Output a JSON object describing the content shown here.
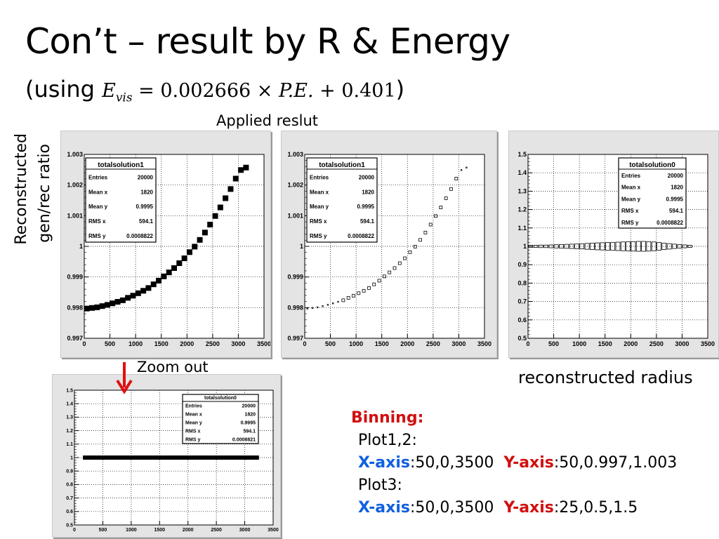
{
  "title": "Con’t – result by R & Energy",
  "subtitle": {
    "open": "(using ",
    "formula_lhs": "E",
    "formula_sub": "vis",
    "formula_rest": " = 0.002666 × ",
    "formula_pe": "P.E.",
    "formula_tail": " + 0.401",
    "close": ")"
  },
  "applied_label": "Applied reslut",
  "ylabel_line1": "Reconstructed",
  "ylabel_line2": "gen/rec ratio",
  "zoom_label": "Zoom out",
  "xaxis_caption": "reconstructed radius",
  "binning": {
    "header": "Binning:",
    "plot12": "Plot1,2:",
    "plot3": "Plot3:",
    "xaxis_word": "X-axis",
    "yaxis_word": "Y-axis",
    "row1_x": ":50,0,3500",
    "row1_y": ":50,0.997,1.003",
    "row2_x": ":50,0,3500",
    "row2_y": ":25,0.5,1.5"
  },
  "colors": {
    "red": "#d01010",
    "blue": "#1060e0",
    "panel_bg": "#e4e4e4"
  },
  "chart_data": [
    {
      "type": "scatter",
      "stats": {
        "name": "totalsolution1",
        "rows": [
          [
            "Entries",
            "20000"
          ],
          [
            "Mean x",
            "1820"
          ],
          [
            "Mean y",
            "0.9995"
          ],
          [
            "RMS x",
            "594.1"
          ],
          [
            "RMS y",
            "0.0008822"
          ]
        ]
      },
      "xlim": [
        0,
        3500
      ],
      "ylim": [
        0.997,
        1.003
      ],
      "xticks": [
        "0",
        "500",
        "1000",
        "1500",
        "2000",
        "2500",
        "3000",
        "3500"
      ],
      "yticks": [
        "0.997",
        "0.998",
        "0.999",
        "1",
        "1.001",
        "1.002",
        "1.003"
      ],
      "style": "dense",
      "x": [
        0,
        100,
        200,
        300,
        400,
        500,
        600,
        700,
        800,
        900,
        1000,
        1100,
        1200,
        1300,
        1400,
        1500,
        1600,
        1700,
        1800,
        1900,
        2000,
        2100,
        2200,
        2300,
        2400,
        2500,
        2600,
        2700,
        2800,
        2900,
        3000,
        3100
      ],
      "y": [
        0.99797,
        0.99799,
        0.99801,
        0.99805,
        0.99809,
        0.99814,
        0.99819,
        0.99824,
        0.99832,
        0.99839,
        0.99847,
        0.99855,
        0.99864,
        0.99876,
        0.99888,
        0.99902,
        0.99915,
        0.99929,
        0.99945,
        0.99961,
        0.99981,
        0.99999,
        1.00021,
        1.00045,
        1.00071,
        1.00099,
        1.00127,
        1.00157,
        1.00187,
        1.00221,
        1.00249,
        1.00257
      ]
    },
    {
      "type": "scatter",
      "stats": {
        "name": "totalsolution1",
        "rows": [
          [
            "Entries",
            "20000"
          ],
          [
            "Mean x",
            "1820"
          ],
          [
            "Mean y",
            "0.9995"
          ],
          [
            "RMS x",
            "594.1"
          ],
          [
            "RMS y",
            "0.0008822"
          ]
        ]
      },
      "xlim": [
        0,
        3500
      ],
      "ylim": [
        0.997,
        1.003
      ],
      "xticks": [
        "0",
        "500",
        "1000",
        "1500",
        "2000",
        "2500",
        "3000",
        "3500"
      ],
      "yticks": [
        "0.997",
        "0.998",
        "0.999",
        "1",
        "1.001",
        "1.002",
        "1.003"
      ],
      "style": "boxes",
      "x": [
        0,
        100,
        200,
        300,
        400,
        500,
        600,
        700,
        800,
        900,
        1000,
        1100,
        1200,
        1300,
        1400,
        1500,
        1600,
        1700,
        1800,
        1900,
        2000,
        2100,
        2200,
        2300,
        2400,
        2500,
        2600,
        2700,
        2800,
        2900,
        3000,
        3100
      ],
      "y": [
        0.99797,
        0.99799,
        0.99801,
        0.99805,
        0.99809,
        0.99814,
        0.99819,
        0.99824,
        0.99832,
        0.99839,
        0.99847,
        0.99855,
        0.99864,
        0.99876,
        0.99888,
        0.99902,
        0.99915,
        0.99929,
        0.99945,
        0.99961,
        0.99981,
        0.99999,
        1.00021,
        1.00045,
        1.00071,
        1.00099,
        1.00127,
        1.00157,
        1.00187,
        1.00221,
        1.00249,
        1.00257
      ]
    },
    {
      "type": "scatter",
      "stats": {
        "name": "totalsolution0",
        "rows": [
          [
            "Entries",
            "20000"
          ],
          [
            "Mean x",
            "1820"
          ],
          [
            "Mean y",
            "0.9995"
          ],
          [
            "RMS x",
            "594.1"
          ],
          [
            "RMS y",
            "0.0008822"
          ]
        ]
      },
      "xlim": [
        0,
        3500
      ],
      "ylim": [
        0.5,
        1.5
      ],
      "xticks": [
        "0",
        "500",
        "1000",
        "1500",
        "2000",
        "2500",
        "3000",
        "3500"
      ],
      "yticks": [
        "0.5",
        "0.6",
        "0.7",
        "0.8",
        "0.9",
        "1",
        "1.1",
        "1.2",
        "1.3",
        "1.4",
        "1.5"
      ],
      "style": "flat",
      "x": [
        0,
        100,
        200,
        300,
        400,
        500,
        600,
        700,
        800,
        900,
        1000,
        1100,
        1200,
        1300,
        1400,
        1500,
        1600,
        1700,
        1800,
        1900,
        2000,
        2100,
        2200,
        2300,
        2400,
        2500,
        2600,
        2700,
        2800,
        2900,
        3000,
        3100
      ],
      "y": [
        1,
        1,
        1,
        1,
        1,
        1,
        1,
        1,
        1,
        1,
        1,
        1,
        1,
        1,
        1,
        1,
        1,
        1,
        1,
        1,
        1,
        1,
        1,
        1,
        1,
        1,
        1,
        1,
        1,
        1,
        1,
        1
      ],
      "box_h": [
        0.004,
        0.004,
        0.006,
        0.006,
        0.008,
        0.01,
        0.012,
        0.014,
        0.016,
        0.018,
        0.02,
        0.024,
        0.028,
        0.03,
        0.032,
        0.034,
        0.036,
        0.038,
        0.04,
        0.042,
        0.044,
        0.046,
        0.046,
        0.044,
        0.04,
        0.034,
        0.028,
        0.022,
        0.016,
        0.012,
        0.008,
        0.004
      ]
    },
    {
      "type": "scatter",
      "stats": {
        "name": "totalsolution0",
        "rows": [
          [
            "Entries",
            "20000"
          ],
          [
            "Mean x",
            "1820"
          ],
          [
            "Mean y",
            "0.9995"
          ],
          [
            "RMS x",
            "594.1"
          ],
          [
            "RMS y",
            "0.0008821"
          ]
        ]
      },
      "xlim": [
        0,
        3500
      ],
      "ylim": [
        0.5,
        1.5
      ],
      "xticks": [
        "0",
        "500",
        "1000",
        "1500",
        "2000",
        "2500",
        "3000",
        "3500"
      ],
      "yticks": [
        "0.5",
        "0.6",
        "0.7",
        "0.8",
        "0.9",
        "1",
        "1.1",
        "1.2",
        "1.3",
        "1.4",
        "1.5"
      ],
      "style": "band",
      "x": [
        150,
        3250
      ],
      "y": [
        1,
        1
      ]
    }
  ]
}
